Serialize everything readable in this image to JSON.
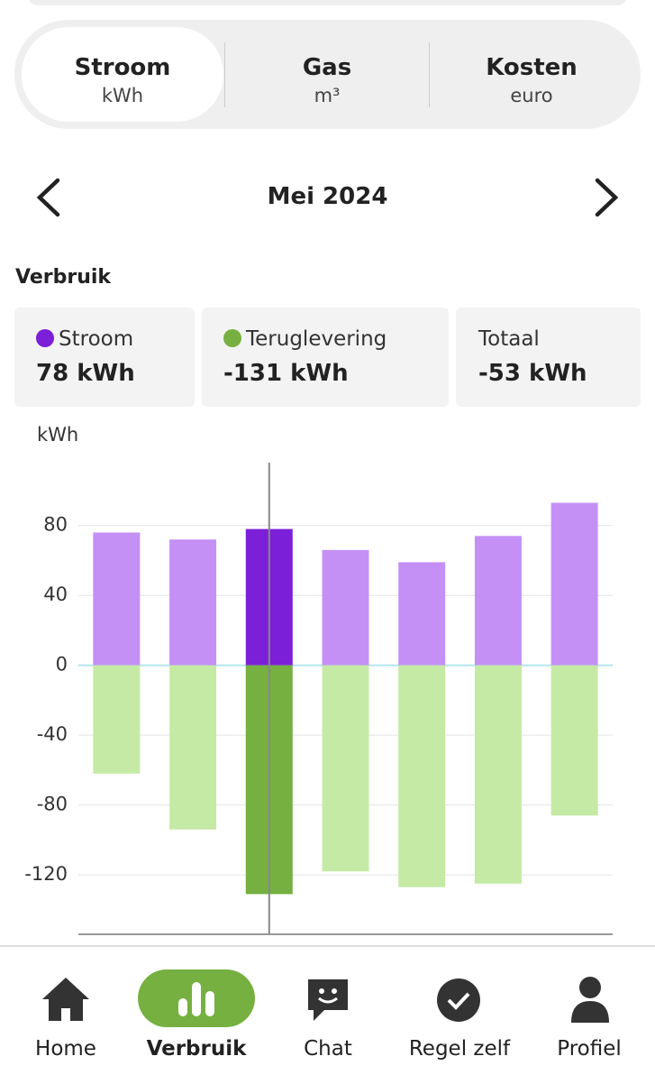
{
  "tabs": [
    {
      "label": "Stroom",
      "unit": "kWh"
    },
    {
      "label": "Gas",
      "unit": "m³"
    },
    {
      "label": "Kosten",
      "unit": "euro"
    }
  ],
  "period": "Mei 2024",
  "section_title": "Verbruik",
  "cards": [
    {
      "label": "Stroom",
      "value": "78 kWh",
      "dot": "#7c1fd9"
    },
    {
      "label": "Teruglevering",
      "value": "-131 kWh",
      "dot": "#76b041"
    },
    {
      "label": "Totaal",
      "value": "-53 kWh"
    }
  ],
  "chart_data": {
    "type": "bar",
    "y_label": "kWh",
    "categories": [
      null,
      null,
      null,
      null,
      null,
      null,
      null
    ],
    "series": [
      {
        "name": "Stroom",
        "color": "#c490f5",
        "highlight_color": "#7c1fd9",
        "values": [
          76,
          72,
          78,
          66,
          59,
          74,
          93
        ]
      },
      {
        "name": "Teruglevering",
        "color": "#c5eaa5",
        "highlight_color": "#76b041",
        "values": [
          -62,
          -94,
          -131,
          -118,
          -127,
          -125,
          -86
        ]
      }
    ],
    "highlight_index": 2,
    "ylim": [
      -154,
      116
    ],
    "yticks": [
      -120,
      -80,
      -40,
      0,
      40,
      80
    ],
    "grid": true
  },
  "nav": [
    {
      "label": "Home"
    },
    {
      "label": "Verbruik"
    },
    {
      "label": "Chat"
    },
    {
      "label": "Regel zelf"
    },
    {
      "label": "Profiel"
    }
  ]
}
